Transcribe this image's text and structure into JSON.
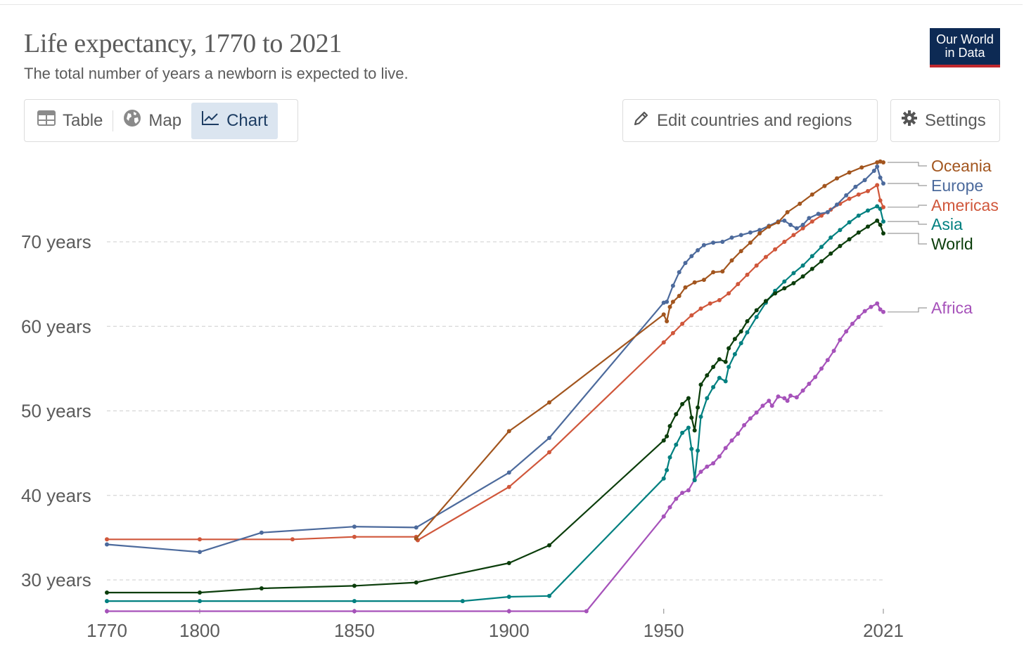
{
  "header": {
    "title": "Life expectancy, 1770 to 2021",
    "subtitle": "The total number of years a newborn is expected to live.",
    "logo_line1": "Our World",
    "logo_line2": "in Data"
  },
  "tabs": [
    {
      "label": "Table",
      "icon": "table-icon",
      "active": false
    },
    {
      "label": "Map",
      "icon": "globe-icon",
      "active": false
    },
    {
      "label": "Chart",
      "icon": "line-chart-icon",
      "active": true
    }
  ],
  "toolbar": {
    "edit_label": "Edit countries and regions",
    "settings_label": "Settings"
  },
  "colors": {
    "Oceania": "#a2551e",
    "Europe": "#4c6a9c",
    "Americas": "#d0573b",
    "Asia": "#018080",
    "World": "#0b3d0b",
    "Africa": "#a652ba"
  },
  "chart_data": {
    "type": "line",
    "title": "Life expectancy, 1770 to 2021",
    "subtitle": "The total number of years a newborn is expected to live.",
    "xlim": [
      1765,
      2021
    ],
    "ylim": [
      26,
      80
    ],
    "x_ticks": [
      1770,
      1800,
      1850,
      1900,
      1950,
      2021
    ],
    "y_ticks": [
      30,
      40,
      50,
      60,
      70
    ],
    "y_tick_labels": [
      "30 years",
      "40 years",
      "50 years",
      "60 years",
      "70 years"
    ],
    "grid": "horizontal dashed",
    "legend": "right, labels at line ends",
    "series": [
      {
        "name": "Oceania",
        "points": [
          [
            1870,
            34.9
          ],
          [
            1900,
            47.6
          ],
          [
            1913,
            51.0
          ],
          [
            1950,
            61.4
          ],
          [
            1951,
            60.6
          ],
          [
            1952,
            62.3
          ],
          [
            1953,
            62.9
          ],
          [
            1955,
            63.6
          ],
          [
            1957,
            64.6
          ],
          [
            1960,
            65.2
          ],
          [
            1963,
            65.5
          ],
          [
            1966,
            66.4
          ],
          [
            1969,
            66.5
          ],
          [
            1972,
            67.8
          ],
          [
            1975,
            68.9
          ],
          [
            1978,
            69.9
          ],
          [
            1981,
            71.0
          ],
          [
            1984,
            71.8
          ],
          [
            1987,
            72.3
          ],
          [
            1990,
            73.5
          ],
          [
            1994,
            74.5
          ],
          [
            1998,
            75.6
          ],
          [
            2002,
            76.6
          ],
          [
            2006,
            77.5
          ],
          [
            2010,
            78.2
          ],
          [
            2014,
            78.8
          ],
          [
            2019,
            79.4
          ],
          [
            2020,
            79.5
          ],
          [
            2021,
            79.4
          ]
        ]
      },
      {
        "name": "Europe",
        "points": [
          [
            1770,
            34.2
          ],
          [
            1800,
            33.3
          ],
          [
            1820,
            35.6
          ],
          [
            1850,
            36.3
          ],
          [
            1870,
            36.2
          ],
          [
            1900,
            42.7
          ],
          [
            1913,
            46.8
          ],
          [
            1950,
            62.8
          ],
          [
            1951,
            62.9
          ],
          [
            1953,
            64.8
          ],
          [
            1955,
            66.4
          ],
          [
            1957,
            67.5
          ],
          [
            1959,
            68.3
          ],
          [
            1961,
            69.0
          ],
          [
            1963,
            69.6
          ],
          [
            1966,
            69.9
          ],
          [
            1969,
            70.0
          ],
          [
            1972,
            70.5
          ],
          [
            1975,
            70.8
          ],
          [
            1978,
            71.1
          ],
          [
            1981,
            71.4
          ],
          [
            1984,
            71.9
          ],
          [
            1987,
            72.4
          ],
          [
            1989,
            72.5
          ],
          [
            1991,
            72.0
          ],
          [
            1993,
            71.6
          ],
          [
            1995,
            72.0
          ],
          [
            1997,
            72.8
          ],
          [
            2000,
            73.3
          ],
          [
            2003,
            73.5
          ],
          [
            2006,
            74.4
          ],
          [
            2009,
            75.5
          ],
          [
            2012,
            76.5
          ],
          [
            2015,
            77.3
          ],
          [
            2018,
            78.4
          ],
          [
            2019,
            78.9
          ],
          [
            2020,
            77.6
          ],
          [
            2021,
            76.9
          ]
        ]
      },
      {
        "name": "Americas",
        "points": [
          [
            1770,
            34.8
          ],
          [
            1800,
            34.8
          ],
          [
            1830,
            34.8
          ],
          [
            1850,
            35.1
          ],
          [
            1870,
            35.1
          ],
          [
            1870.5,
            34.7
          ],
          [
            1900,
            41.0
          ],
          [
            1913,
            45.1
          ],
          [
            1950,
            58.1
          ],
          [
            1953,
            59.2
          ],
          [
            1956,
            60.3
          ],
          [
            1959,
            61.3
          ],
          [
            1962,
            62.1
          ],
          [
            1965,
            62.7
          ],
          [
            1968,
            63.1
          ],
          [
            1971,
            63.9
          ],
          [
            1974,
            65.0
          ],
          [
            1977,
            66.1
          ],
          [
            1980,
            67.2
          ],
          [
            1983,
            68.2
          ],
          [
            1986,
            69.1
          ],
          [
            1989,
            70.0
          ],
          [
            1992,
            70.8
          ],
          [
            1995,
            71.6
          ],
          [
            1998,
            72.4
          ],
          [
            2001,
            73.1
          ],
          [
            2004,
            73.8
          ],
          [
            2007,
            74.5
          ],
          [
            2010,
            75.1
          ],
          [
            2013,
            75.6
          ],
          [
            2016,
            76.0
          ],
          [
            2019,
            76.7
          ],
          [
            2020,
            74.9
          ],
          [
            2021,
            74.1
          ]
        ]
      },
      {
        "name": "Asia",
        "points": [
          [
            1770,
            27.5
          ],
          [
            1800,
            27.5
          ],
          [
            1850,
            27.5
          ],
          [
            1885,
            27.5
          ],
          [
            1900,
            28.0
          ],
          [
            1913,
            28.1
          ],
          [
            1950,
            42.0
          ],
          [
            1951,
            43.0
          ],
          [
            1952,
            44.5
          ],
          [
            1954,
            46.0
          ],
          [
            1956,
            47.4
          ],
          [
            1958,
            48.0
          ],
          [
            1959,
            45.5
          ],
          [
            1960,
            41.8
          ],
          [
            1961,
            45.3
          ],
          [
            1962,
            49.3
          ],
          [
            1964,
            51.5
          ],
          [
            1966,
            52.8
          ],
          [
            1968,
            53.9
          ],
          [
            1970,
            53.5
          ],
          [
            1971,
            55.2
          ],
          [
            1973,
            56.7
          ],
          [
            1975,
            58.0
          ],
          [
            1977,
            59.3
          ],
          [
            1980,
            61.1
          ],
          [
            1983,
            62.8
          ],
          [
            1986,
            64.2
          ],
          [
            1989,
            65.3
          ],
          [
            1992,
            66.3
          ],
          [
            1995,
            67.2
          ],
          [
            1998,
            68.3
          ],
          [
            2001,
            69.4
          ],
          [
            2004,
            70.5
          ],
          [
            2007,
            71.4
          ],
          [
            2010,
            72.3
          ],
          [
            2013,
            73.1
          ],
          [
            2016,
            73.7
          ],
          [
            2019,
            74.2
          ],
          [
            2020,
            73.9
          ],
          [
            2021,
            72.4
          ]
        ]
      },
      {
        "name": "World",
        "points": [
          [
            1770,
            28.5
          ],
          [
            1800,
            28.5
          ],
          [
            1820,
            29.0
          ],
          [
            1850,
            29.3
          ],
          [
            1870,
            29.7
          ],
          [
            1900,
            32.0
          ],
          [
            1913,
            34.1
          ],
          [
            1950,
            46.5
          ],
          [
            1951,
            47.0
          ],
          [
            1952,
            48.2
          ],
          [
            1954,
            49.6
          ],
          [
            1956,
            50.8
          ],
          [
            1958,
            51.5
          ],
          [
            1959,
            49.2
          ],
          [
            1960,
            47.7
          ],
          [
            1961,
            50.4
          ],
          [
            1962,
            53.1
          ],
          [
            1964,
            54.2
          ],
          [
            1966,
            55.2
          ],
          [
            1968,
            56.1
          ],
          [
            1970,
            55.8
          ],
          [
            1971,
            57.4
          ],
          [
            1973,
            58.5
          ],
          [
            1975,
            59.4
          ],
          [
            1977,
            60.6
          ],
          [
            1980,
            61.9
          ],
          [
            1983,
            63.0
          ],
          [
            1986,
            63.9
          ],
          [
            1989,
            64.5
          ],
          [
            1992,
            65.1
          ],
          [
            1995,
            65.9
          ],
          [
            1998,
            66.8
          ],
          [
            2001,
            67.7
          ],
          [
            2004,
            68.6
          ],
          [
            2007,
            69.5
          ],
          [
            2010,
            70.3
          ],
          [
            2013,
            71.1
          ],
          [
            2016,
            71.8
          ],
          [
            2019,
            72.5
          ],
          [
            2020,
            72.0
          ],
          [
            2021,
            71.0
          ]
        ]
      },
      {
        "name": "Africa",
        "points": [
          [
            1770,
            26.3
          ],
          [
            1850,
            26.3
          ],
          [
            1900,
            26.3
          ],
          [
            1925,
            26.3
          ],
          [
            1950,
            37.5
          ],
          [
            1952,
            38.6
          ],
          [
            1954,
            39.6
          ],
          [
            1956,
            40.3
          ],
          [
            1958,
            40.6
          ],
          [
            1960,
            41.9
          ],
          [
            1962,
            42.8
          ],
          [
            1964,
            43.4
          ],
          [
            1966,
            43.8
          ],
          [
            1968,
            44.6
          ],
          [
            1970,
            45.6
          ],
          [
            1972,
            46.5
          ],
          [
            1974,
            47.3
          ],
          [
            1976,
            48.3
          ],
          [
            1978,
            49.1
          ],
          [
            1980,
            49.8
          ],
          [
            1982,
            50.6
          ],
          [
            1984,
            51.2
          ],
          [
            1985,
            50.6
          ],
          [
            1987,
            51.7
          ],
          [
            1989,
            51.5
          ],
          [
            1990,
            51.2
          ],
          [
            1991,
            51.8
          ],
          [
            1993,
            51.6
          ],
          [
            1995,
            52.4
          ],
          [
            1997,
            53.2
          ],
          [
            1999,
            54.0
          ],
          [
            2001,
            55.0
          ],
          [
            2003,
            56.0
          ],
          [
            2005,
            57.1
          ],
          [
            2007,
            58.4
          ],
          [
            2009,
            59.4
          ],
          [
            2011,
            60.3
          ],
          [
            2013,
            61.1
          ],
          [
            2015,
            61.8
          ],
          [
            2017,
            62.3
          ],
          [
            2019,
            62.7
          ],
          [
            2020,
            62.0
          ],
          [
            2021,
            61.7
          ]
        ]
      }
    ]
  }
}
